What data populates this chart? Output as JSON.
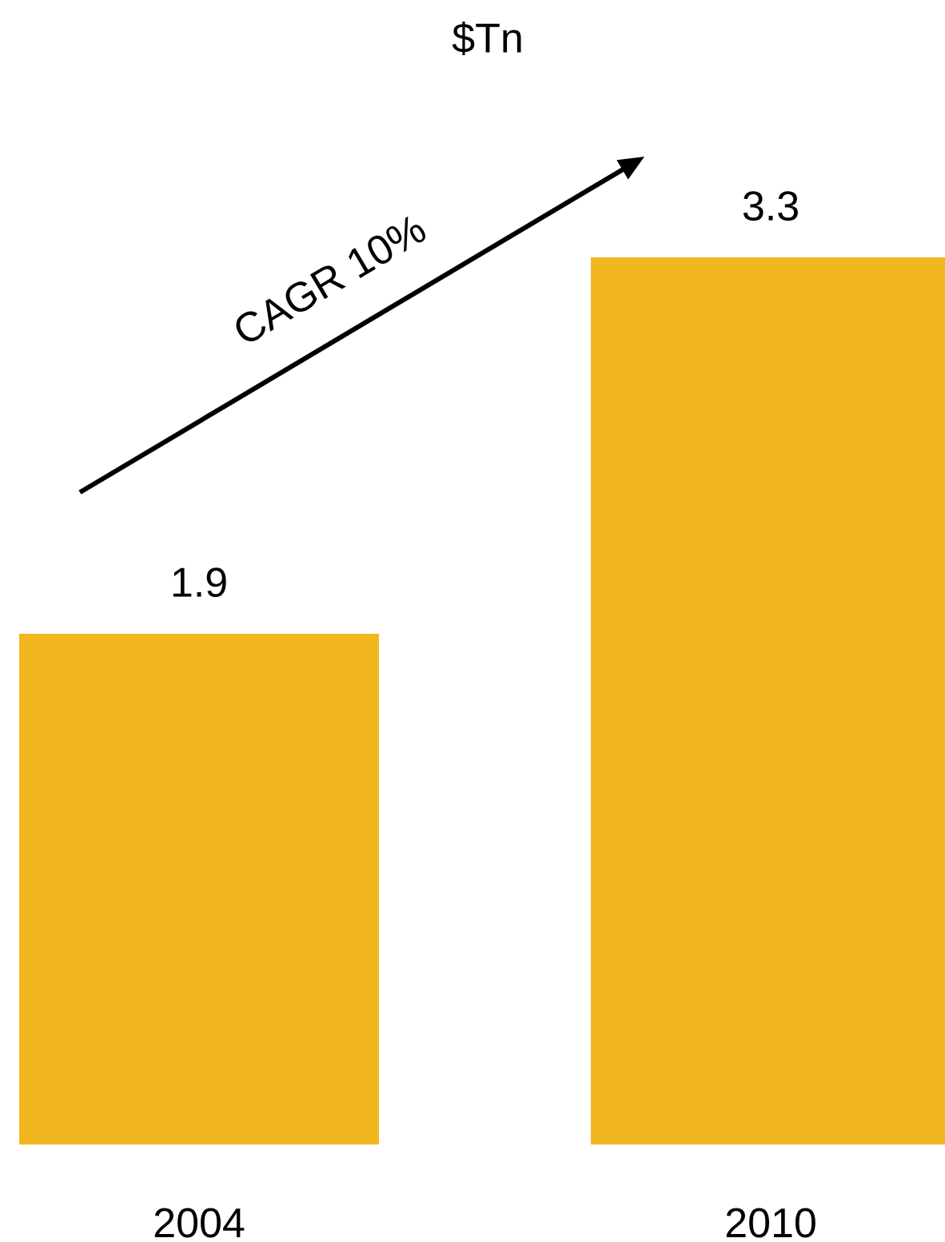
{
  "chart_data": {
    "type": "bar",
    "title": "$Tn",
    "categories": [
      "2004",
      "2010"
    ],
    "values": [
      1.9,
      3.3
    ],
    "color": "#f2b61f",
    "data_labels": true,
    "annotations": [
      "CAGR 10%"
    ]
  }
}
